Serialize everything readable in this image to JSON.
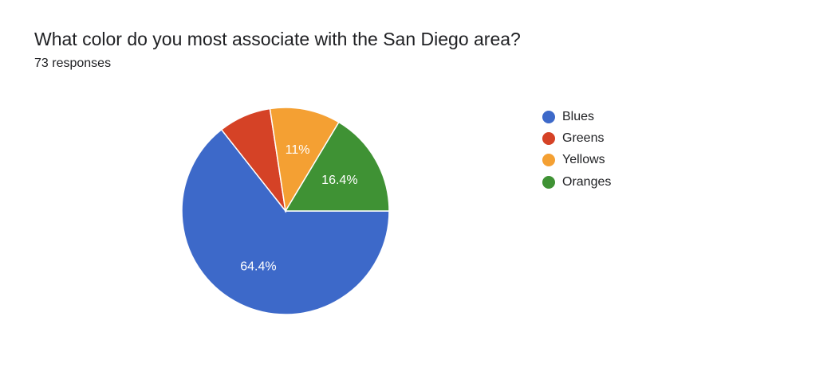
{
  "header": {
    "title": "What color do you most associate with the San Diego area?",
    "responses": "73 responses"
  },
  "chart_data": {
    "type": "pie",
    "title": "What color do you most associate with the San Diego area?",
    "categories": [
      "Blues",
      "Greens",
      "Yellows",
      "Oranges"
    ],
    "values": [
      64.4,
      8.2,
      11,
      16.4
    ],
    "value_labels": [
      "64.4%",
      "",
      "11%",
      "16.4%"
    ],
    "colors": [
      "#3d69c9",
      "#d54226",
      "#f4a033",
      "#3f9234"
    ],
    "legend_position": "right"
  }
}
